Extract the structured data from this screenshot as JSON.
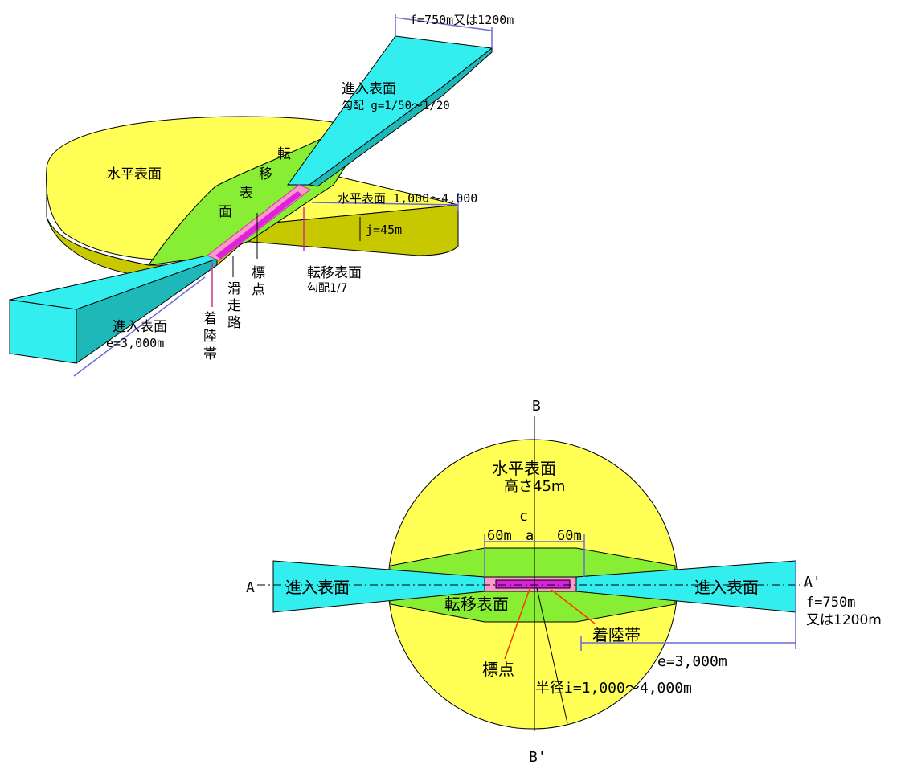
{
  "iso": {
    "approach_width": "f=750m又は1200m",
    "approach_top_title": "進入表面",
    "approach_slope": "勾配 g=1/50～1/20",
    "horizontal_title": "水平表面",
    "transition_chars": [
      "転",
      "移",
      "表",
      "面"
    ],
    "horizontal_radius": "水平表面 1,000～4,000",
    "height": "j=45m",
    "transition_label": "転移表面",
    "transition_slope": "勾配1/7",
    "marker_chars": [
      "標",
      "点"
    ],
    "runway_chars": [
      "滑",
      "走",
      "路"
    ],
    "strip_chars": [
      "着",
      "陸",
      "帯"
    ],
    "approach_bottom_title": "進入表面",
    "approach_length": "e=3,000m"
  },
  "plan": {
    "b_top": "B",
    "b_bottom": "B'",
    "a_left": "A",
    "a_right": "A'",
    "horizontal_title": "水平表面",
    "horizontal_height": "高さ45m",
    "c": "c",
    "left_60": "60m",
    "a_label": "a",
    "right_60": "60m",
    "approach_left": "進入表面",
    "approach_right": "進入表面",
    "transition": "転移表面",
    "strip": "着陸帯",
    "marker": "標点",
    "radius": "半径i=1,000～4,000m",
    "length": "e=3,000m",
    "width_1": "f=750m",
    "width_2": "又は1200m"
  },
  "colors": {
    "horizontal": "#ffff55",
    "horizontal_side": "#c8c800",
    "transition": "#88ee33",
    "approach": "#33eeee",
    "approach_side": "#1fb8b8",
    "strip": "#ff99cc",
    "runway": "#dd22dd",
    "dimension": "#6b6bd6"
  }
}
